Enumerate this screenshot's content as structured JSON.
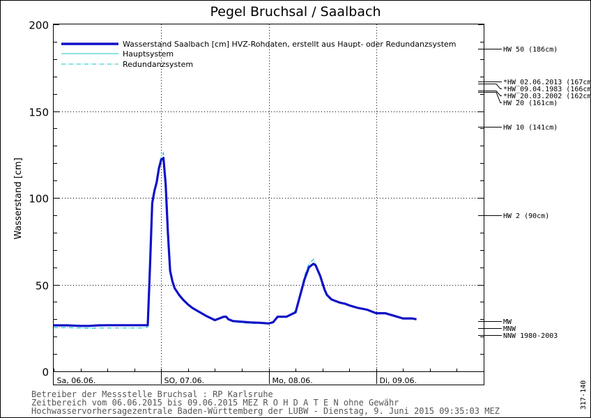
{
  "chart_data": {
    "type": "line",
    "title": "Pegel Bruchsal / Saalbach",
    "ylabel": "Wasserstand [cm]",
    "xlabel": "",
    "ylim": [
      0,
      200
    ],
    "yticks": [
      0,
      50,
      100,
      150,
      200
    ],
    "xlim": [
      0,
      96
    ],
    "x_unit": "hours since 06.06.2015 00:00",
    "day_labels": [
      {
        "x": 0,
        "label": "Sa, 06.06."
      },
      {
        "x": 24,
        "label": "SO, 07.06."
      },
      {
        "x": 48,
        "label": "Mo, 08.06."
      },
      {
        "x": 72,
        "label": "Di, 09.06."
      }
    ],
    "grid": true,
    "legend_position": "top-left",
    "series": [
      {
        "name": "Wasserstand Saalbach [cm] HVZ-Rohdaten, erstellt aus Haupt- oder Redundanzsystem",
        "color": "#1010c8",
        "style": "thick",
        "x": [
          0,
          3,
          6,
          8,
          10,
          12,
          14,
          16,
          18,
          20,
          21,
          21.5,
          22,
          22.5,
          23,
          23.5,
          24,
          24.5,
          25,
          25.5,
          26,
          26.5,
          27,
          28,
          29,
          30,
          31,
          32,
          34,
          36,
          38,
          38.5,
          39,
          40,
          42,
          44,
          46,
          48,
          49,
          50,
          52,
          54,
          56,
          57,
          58,
          58.5,
          59,
          59.5,
          60,
          60.5,
          61,
          62,
          63,
          64,
          65,
          66,
          68,
          70,
          72,
          74,
          76,
          78,
          80,
          81
        ],
        "values": [
          26.5,
          26.5,
          26.2,
          26.2,
          26.5,
          26.6,
          26.6,
          26.6,
          26.6,
          26.6,
          26.6,
          60,
          97,
          104,
          109,
          117,
          122,
          123,
          108,
          80,
          58,
          52,
          48,
          44,
          41,
          38.5,
          36.5,
          35,
          32,
          29.5,
          31.5,
          31.5,
          30,
          29,
          28.6,
          28.2,
          28,
          27.6,
          28.3,
          31.5,
          31.5,
          34,
          53,
          60,
          62,
          61,
          58,
          55,
          51,
          47,
          44,
          41.5,
          40.5,
          39.5,
          39,
          38,
          36.5,
          35.5,
          33.5,
          33.5,
          32,
          30.5,
          30.5,
          30
        ]
      },
      {
        "name": "Hauptsystem",
        "color": "#19c0c0",
        "style": "solid"
      },
      {
        "name": "Redundanzsystem",
        "color": "#19c0c0",
        "style": "dashdot",
        "x": [
          0,
          3,
          6,
          8,
          10,
          12,
          14,
          16,
          18,
          20,
          21,
          21.5,
          22,
          22.5,
          23,
          23.5,
          24,
          24.5,
          25,
          25.5,
          26,
          26.5,
          27,
          28,
          29,
          30,
          31,
          32,
          34,
          36,
          38,
          38.5,
          39,
          40,
          42,
          44,
          46,
          48,
          49,
          50,
          52,
          54,
          56,
          57,
          58,
          58.5,
          59,
          59.5,
          60,
          60.5,
          61,
          62,
          63,
          64,
          65,
          66,
          68,
          70,
          72,
          74,
          76,
          78,
          80,
          81
        ],
        "values": [
          25.2,
          25.2,
          25,
          24.8,
          25,
          25,
          25,
          25,
          25,
          25,
          25.5,
          58,
          96,
          104,
          110,
          118,
          124,
          126,
          110,
          82,
          59,
          53,
          48.5,
          44,
          41,
          38.5,
          36.5,
          35,
          32,
          29.5,
          31.5,
          31.5,
          30,
          28.5,
          28,
          27.6,
          27.5,
          27.6,
          28.5,
          31.5,
          31.5,
          35,
          55,
          62,
          64.5,
          62,
          58,
          55,
          51,
          47,
          44,
          41.5,
          40.5,
          39.5,
          39,
          38,
          36.5,
          35.5,
          33.5,
          33.5,
          32,
          30.5,
          30.5,
          30
        ]
      }
    ],
    "reference_levels": [
      {
        "y": 186,
        "label": "HW 50 (186cm)"
      },
      {
        "y": 167,
        "label": "*HW_02.06.2013 (167cm)"
      },
      {
        "y": 166,
        "label": "*HW_09.04.1983 (166cm)"
      },
      {
        "y": 162,
        "label": "*HW_20.03.2002 (162cm)"
      },
      {
        "y": 161,
        "label": "HW 20 (161cm)"
      },
      {
        "y": 141,
        "label": "HW 10 (141cm)"
      },
      {
        "y": 90,
        "label": "HW 2 (90cm)"
      },
      {
        "y": 29,
        "label": "MW"
      },
      {
        "y": 25,
        "label": "MNW"
      },
      {
        "y": 21,
        "label": "NNW 1980-2003"
      }
    ]
  },
  "footer": {
    "line1": "Betreiber der Messstelle Bruchsal : RP Karlsruhe",
    "line2": "Zeitbereich vom 06.06.2015 bis 09.06.2015    MEZ    R O H D A T E N ohne Gewähr",
    "line3": "Hochwasservorhersagezentrale Baden-Württemberg der LUBW - Dienstag, 9. Juni 2015 09:35:03 MEZ"
  },
  "side_code": "317-140",
  "colors": {
    "main_line": "#1010c8",
    "secondary_line": "#19c0c0",
    "frame": "#000000",
    "footer_text": "#555555"
  }
}
